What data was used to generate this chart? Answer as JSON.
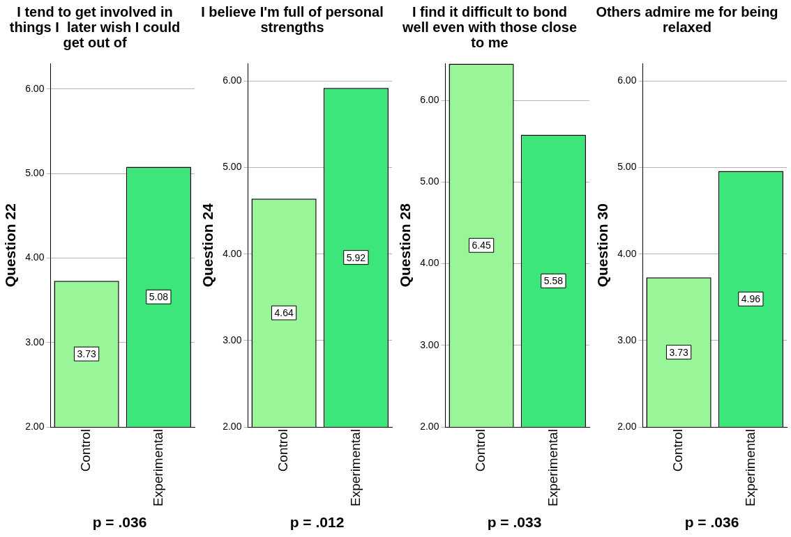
{
  "chart_data": [
    {
      "type": "bar",
      "title": "I tend to get involved in things I  later wish I could get out of",
      "ylabel": "Question 22",
      "categories": [
        "Control",
        "Experimental"
      ],
      "values": [
        3.73,
        5.08
      ],
      "colors": [
        "#98f598",
        "#3de67a"
      ],
      "ylim": [
        2,
        6.3
      ],
      "yticks": [
        {
          "value": 2,
          "label": "2.00"
        },
        {
          "value": 3,
          "label": "3.00"
        },
        {
          "value": 4,
          "label": "4.00"
        },
        {
          "value": 5,
          "label": "5.00"
        },
        {
          "value": 6,
          "label": "6.00"
        }
      ],
      "grid": "y",
      "legend": false,
      "data_labels": true,
      "annotations": [
        "p = .036"
      ]
    },
    {
      "type": "bar",
      "title": "I believe I'm full of personal strengths",
      "ylabel": "Question 24",
      "categories": [
        "Control",
        "Experimental"
      ],
      "values": [
        4.64,
        5.92
      ],
      "colors": [
        "#98f598",
        "#3de67a"
      ],
      "ylim": [
        2,
        6.2
      ],
      "yticks": [
        {
          "value": 2,
          "label": "2.00"
        },
        {
          "value": 3,
          "label": "3.00"
        },
        {
          "value": 4,
          "label": "4.00"
        },
        {
          "value": 5,
          "label": "5.00"
        },
        {
          "value": 6,
          "label": "6.00"
        }
      ],
      "grid": "y",
      "legend": false,
      "data_labels": true,
      "annotations": [
        "p = .012"
      ]
    },
    {
      "type": "bar",
      "title": "I find it difficult to bond well even with those close to me",
      "ylabel": "Question 28",
      "categories": [
        "Control",
        "Experimental"
      ],
      "values": [
        6.45,
        5.58
      ],
      "colors": [
        "#98f598",
        "#3de67a"
      ],
      "ylim": [
        2,
        6.45
      ],
      "yticks": [
        {
          "value": 2,
          "label": "2.00"
        },
        {
          "value": 3,
          "label": "3.00"
        },
        {
          "value": 4,
          "label": "4.00"
        },
        {
          "value": 5,
          "label": "5.00"
        },
        {
          "value": 6,
          "label": "6.00"
        }
      ],
      "grid": "y",
      "legend": false,
      "data_labels": true,
      "annotations": [
        "p = .033"
      ]
    },
    {
      "type": "bar",
      "title": "Others admire me for being relaxed",
      "ylabel": "Question 30",
      "categories": [
        "Control",
        "Experimental"
      ],
      "values": [
        3.73,
        4.96
      ],
      "colors": [
        "#98f598",
        "#3de67a"
      ],
      "ylim": [
        2,
        6.2
      ],
      "yticks": [
        {
          "value": 2,
          "label": "2.00"
        },
        {
          "value": 3,
          "label": "3.00"
        },
        {
          "value": 4,
          "label": "4.00"
        },
        {
          "value": 5,
          "label": "5.00"
        },
        {
          "value": 6,
          "label": "6.00"
        }
      ],
      "grid": "y",
      "legend": false,
      "data_labels": true,
      "annotations": [
        "p = .036"
      ]
    }
  ]
}
